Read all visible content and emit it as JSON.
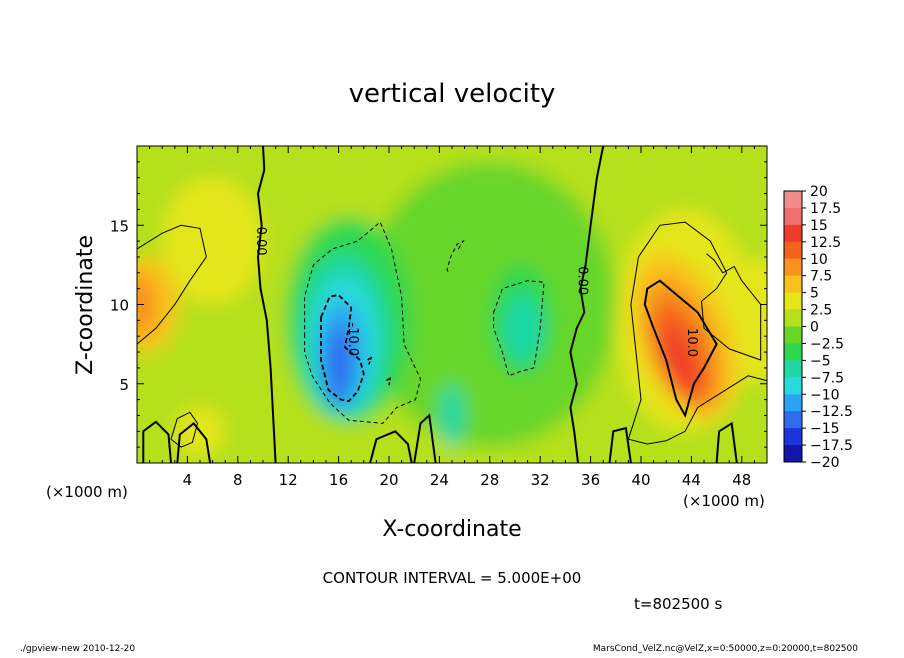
{
  "chart_data": {
    "type": "heatmap",
    "title": "vertical velocity",
    "xlabel": "X-coordinate",
    "ylabel": "Z-coordinate",
    "x_unit_left": "(×1000 m)",
    "x_unit_right": "(×1000 m)",
    "xlim": [
      0,
      50
    ],
    "ylim": [
      0,
      20
    ],
    "xticks": [
      4,
      8,
      12,
      16,
      20,
      24,
      28,
      32,
      36,
      40,
      44,
      48
    ],
    "xtick_labels": [
      "4",
      "8",
      "12",
      "16",
      "20",
      "24",
      "28",
      "32",
      "36",
      "40",
      "44",
      "48"
    ],
    "yticks": [
      5,
      10,
      15
    ],
    "ytick_labels": [
      "5",
      "10",
      "15"
    ],
    "contour_interval_text": "CONTOUR INTERVAL = 5.000E+00",
    "time_text": "t=802500 s",
    "footer_left": "./gpview-new  2010-12-20",
    "footer_right": "MarsCond_VelZ.nc@VelZ,x=0:50000,z=0:20000,t=802500",
    "contour_labels": [
      {
        "text": "0.00",
        "x": 9.8,
        "z": 14.0
      },
      {
        "text": "-10.0",
        "x": 17.1,
        "z": 7.8
      },
      {
        "text": "0.00",
        "x": 35.3,
        "z": 11.5
      },
      {
        "text": "10.0",
        "x": 44.0,
        "z": 7.6
      }
    ],
    "colorbar": {
      "levels": [
        20,
        17.5,
        15,
        12.5,
        10,
        7.5,
        5,
        2.5,
        0,
        -2.5,
        -5,
        -7.5,
        -10,
        -12.5,
        -15,
        -17.5,
        -20
      ],
      "labels": [
        "20",
        "17.5",
        "15",
        "12.5",
        "10",
        "7.5",
        "5",
        "2.5",
        "0",
        "−2.5",
        "−5",
        "−7.5",
        "−10",
        "−12.5",
        "−15",
        "−17.5",
        "−20"
      ],
      "colors": [
        "#f28c8c",
        "#f06f6f",
        "#ef3b2c",
        "#f5621f",
        "#f7931e",
        "#f9c21a",
        "#e5e51a",
        "#b5e01e",
        "#66d62a",
        "#2ed84e",
        "#1fd8a5",
        "#29d9e0",
        "#2aa4f2",
        "#2f6cf0",
        "#1d35d8",
        "#1515a8",
        "#6b1ab8"
      ]
    },
    "field_features": [
      {
        "kind": "updraft",
        "center_x": 43.2,
        "center_z": 6.5,
        "peak": 15
      },
      {
        "kind": "downdraft",
        "center_x": 16.3,
        "center_z": 7.0,
        "peak": -15
      },
      {
        "kind": "downdraft",
        "center_x": 30.5,
        "center_z": 9.0,
        "peak": -7.5
      },
      {
        "kind": "downdraft",
        "center_x": 25.0,
        "center_z": 3.0,
        "peak": -7.5
      },
      {
        "kind": "updraft",
        "center_x": 0.8,
        "center_z": 10.5,
        "peak": 10
      },
      {
        "kind": "updraft",
        "center_x": 49.5,
        "center_z": 9.0,
        "peak": 7.5
      }
    ]
  }
}
